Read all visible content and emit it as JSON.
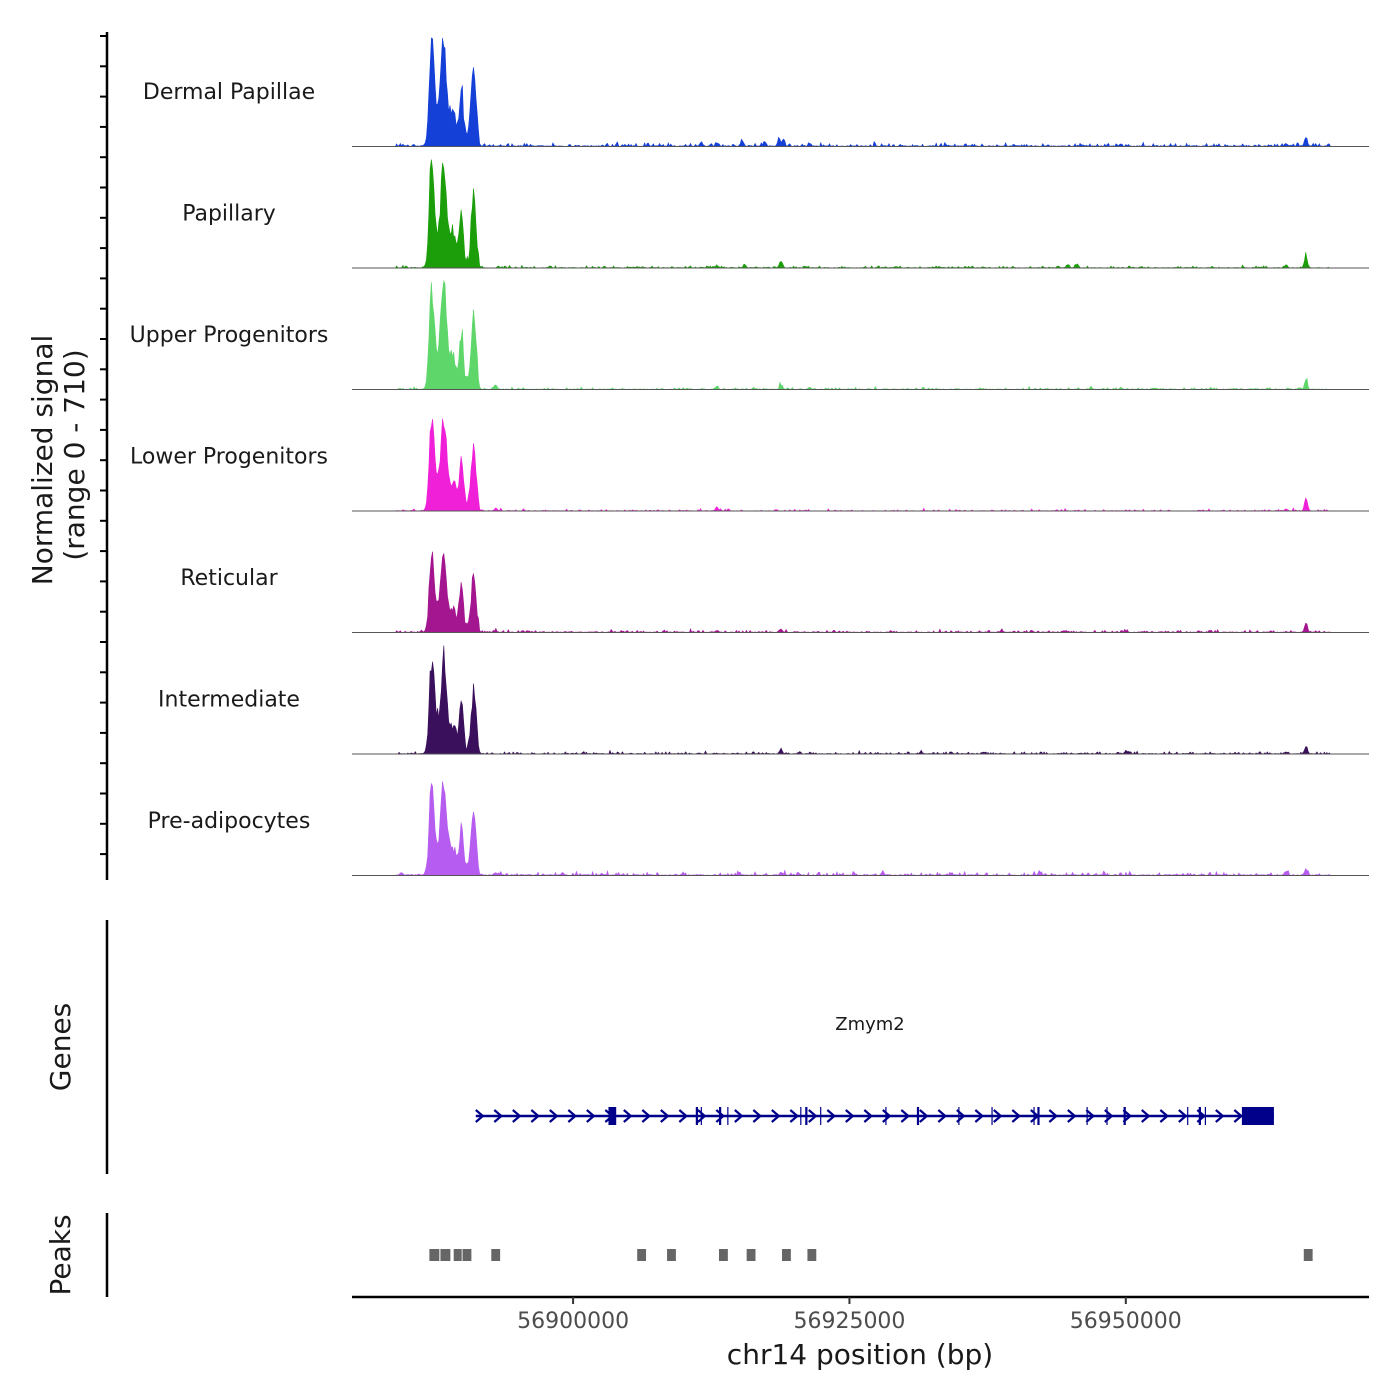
{
  "chart_data": {
    "type": "area",
    "title": "",
    "y_axis_label_line1": "Normalized signal",
    "y_axis_label_line2": "(range 0 - 710)",
    "ylim": [
      0,
      710
    ],
    "xlabel": "chr14 position (bp)",
    "xlim": [
      56880000,
      56972000
    ],
    "x_ticks": [
      {
        "value": 56900000,
        "label": "56900000"
      },
      {
        "value": 56925000,
        "label": "56925000"
      },
      {
        "value": 56950000,
        "label": "56950000"
      }
    ],
    "major_peaks": [
      {
        "pos": 56887200,
        "w": 300,
        "frac": 1.0
      },
      {
        "pos": 56888300,
        "w": 300,
        "frac": 0.8
      },
      {
        "pos": 56888000,
        "w": 700,
        "frac": 0.35
      },
      {
        "pos": 56889100,
        "w": 500,
        "frac": 0.25
      },
      {
        "pos": 56889900,
        "w": 250,
        "frac": 0.55
      },
      {
        "pos": 56891000,
        "w": 300,
        "frac": 0.72
      }
    ],
    "series": [
      {
        "name": "Dermal Papillae",
        "color": "#1540d8",
        "base_frac": 0.015,
        "max_frac": 1.0,
        "jitter": 0.03,
        "minor_peaks": [
          [
            56911600,
            0.04
          ],
          [
            56913000,
            0.03
          ],
          [
            56915300,
            0.06
          ],
          [
            56917300,
            0.04
          ],
          [
            56918600,
            0.05
          ],
          [
            56919000,
            0.07
          ],
          [
            56921400,
            0.03
          ],
          [
            56964500,
            0.03
          ],
          [
            56966300,
            0.1
          ]
        ]
      },
      {
        "name": "Papillary",
        "color": "#1b9e0a",
        "base_frac": 0.01,
        "max_frac": 0.97,
        "jitter": 0.02,
        "minor_peaks": [
          [
            56913000,
            0.02
          ],
          [
            56915500,
            0.03
          ],
          [
            56918800,
            0.08
          ],
          [
            56944800,
            0.03
          ],
          [
            56945600,
            0.04
          ],
          [
            56964500,
            0.03
          ],
          [
            56966300,
            0.13
          ]
        ]
      },
      {
        "name": "Upper Progenitors",
        "color": "#5ed66a",
        "base_frac": 0.008,
        "max_frac": 0.98,
        "jitter": 0.02,
        "minor_peaks": [
          [
            56893000,
            0.05
          ],
          [
            56913000,
            0.03
          ],
          [
            56918800,
            0.05
          ],
          [
            56921400,
            0.02
          ],
          [
            56966300,
            0.1
          ]
        ]
      },
      {
        "name": "Lower Progenitors",
        "color": "#f020d8",
        "base_frac": 0.006,
        "max_frac": 0.84,
        "jitter": 0.02,
        "minor_peaks": [
          [
            56893000,
            0.03
          ],
          [
            56913000,
            0.04
          ],
          [
            56964500,
            0.02
          ],
          [
            56966300,
            0.15
          ]
        ]
      },
      {
        "name": "Reticular",
        "color": "#a3168f",
        "base_frac": 0.01,
        "max_frac": 0.72,
        "jitter": 0.02,
        "minor_peaks": [
          [
            56893000,
            0.02
          ],
          [
            56913000,
            0.02
          ],
          [
            56918800,
            0.03
          ],
          [
            56950000,
            0.02
          ],
          [
            56966300,
            0.1
          ]
        ]
      },
      {
        "name": "Intermediate",
        "color": "#3a0f5c",
        "base_frac": 0.01,
        "max_frac": 0.87,
        "jitter": 0.02,
        "minor_peaks": [
          [
            56918800,
            0.05
          ],
          [
            56920500,
            0.02
          ],
          [
            56950000,
            0.03
          ],
          [
            56964500,
            0.02
          ],
          [
            56966300,
            0.07
          ]
        ]
      },
      {
        "name": "Pre-adipocytes",
        "color": "#b65cf0",
        "base_frac": 0.015,
        "max_frac": 0.84,
        "jitter": 0.035,
        "minor_peaks": [
          [
            56884500,
            0.03
          ],
          [
            56893000,
            0.03
          ],
          [
            56910000,
            0.02
          ],
          [
            56915000,
            0.02
          ],
          [
            56918800,
            0.03
          ],
          [
            56928000,
            0.03
          ],
          [
            56964500,
            0.05
          ],
          [
            56966300,
            0.08
          ]
        ]
      }
    ],
    "genes": {
      "label": "Genes",
      "gene_name": "Zmym2",
      "color": "#00008b",
      "strand": "+",
      "start": 56891200,
      "end": 56963400,
      "exons": [
        {
          "start": 56903200,
          "end": 56903900
        },
        {
          "start": 56911100,
          "end": 56911300
        },
        {
          "start": 56913200,
          "end": 56913400
        },
        {
          "start": 56921000,
          "end": 56921200
        },
        {
          "start": 56931100,
          "end": 56931300
        },
        {
          "start": 56942000,
          "end": 56942200
        },
        {
          "start": 56949800,
          "end": 56950000
        },
        {
          "start": 56956600,
          "end": 56956800
        },
        {
          "start": 56960500,
          "end": 56963400
        }
      ],
      "introns_marks": [
        56911600,
        56914000,
        56920600,
        56922400,
        56928300,
        56934900,
        56937900,
        56941700,
        56946500,
        56948300,
        56955600,
        56957200
      ]
    },
    "peaks": {
      "label": "Peaks",
      "color": "#666666",
      "regions": [
        [
          56887000,
          56887900
        ],
        [
          56888000,
          56888900
        ],
        [
          56889200,
          56889800
        ],
        [
          56890000,
          56890800
        ],
        [
          56892600,
          56893400
        ],
        [
          56905800,
          56906600
        ],
        [
          56908500,
          56909300
        ],
        [
          56913200,
          56914000
        ],
        [
          56915700,
          56916500
        ],
        [
          56918900,
          56919700
        ],
        [
          56921200,
          56922000
        ],
        [
          56966100,
          56966900
        ]
      ]
    }
  }
}
